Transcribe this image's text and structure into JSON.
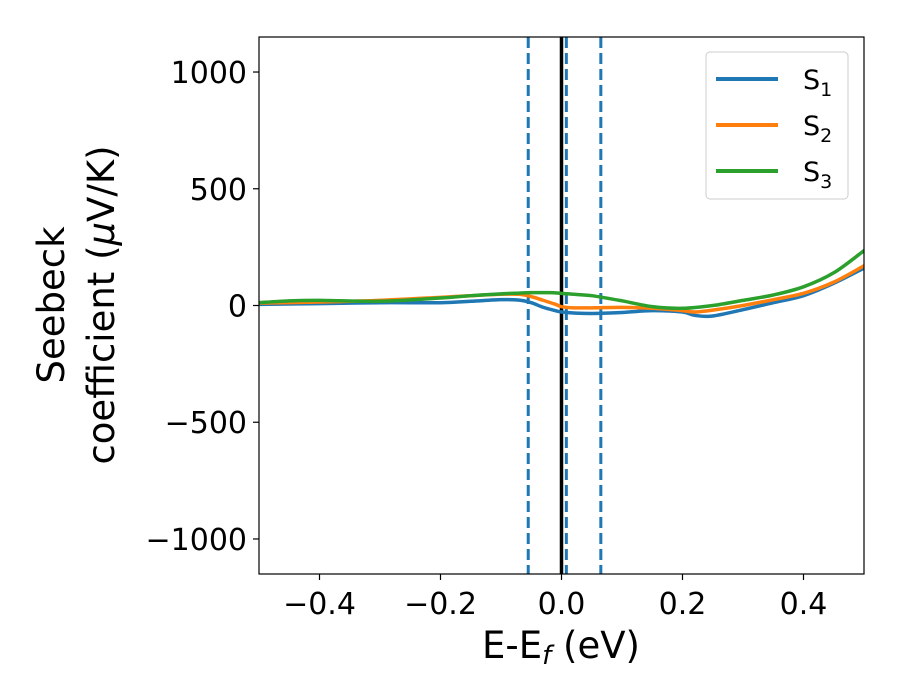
{
  "chart_data": {
    "type": "line",
    "xlabel_main": "E-E",
    "xlabel_sub": "f",
    "xlabel_unit": " (eV)",
    "ylabel_line1": "Seebeck",
    "ylabel_line2_pre": "coefficient  (",
    "ylabel_line2_mu": "μ",
    "ylabel_line2_post": "V/K)",
    "xlim": [
      -0.5,
      0.5
    ],
    "ylim": [
      -1150,
      1150
    ],
    "x_ticks": [
      -0.4,
      -0.2,
      0.0,
      0.2,
      0.4
    ],
    "x_tick_labels": [
      "−0.4",
      "−0.2",
      "0.0",
      "0.2",
      "0.4"
    ],
    "y_ticks": [
      -1000,
      -500,
      0,
      500,
      1000
    ],
    "y_tick_labels": [
      "−1000",
      "−500",
      "0",
      "500",
      "1000"
    ],
    "grid": false,
    "legend_position": "top-right",
    "vertical_lines": [
      {
        "x": 0.0,
        "color": "#000000",
        "style": "solid"
      },
      {
        "x": -0.055,
        "color": "#1f77b4",
        "style": "dashed"
      },
      {
        "x": 0.008,
        "color": "#1f77b4",
        "style": "dashed"
      },
      {
        "x": 0.065,
        "color": "#1f77b4",
        "style": "dashed"
      }
    ],
    "series": [
      {
        "name": "S",
        "sub": "1",
        "color": "#1f77b4",
        "x": [
          -0.5,
          -0.4,
          -0.3,
          -0.2,
          -0.15,
          -0.1,
          -0.07,
          -0.05,
          -0.03,
          -0.01,
          0.0,
          0.02,
          0.05,
          0.1,
          0.15,
          0.2,
          0.22,
          0.25,
          0.3,
          0.35,
          0.4,
          0.45,
          0.5
        ],
        "y": [
          5,
          8,
          12,
          12,
          18,
          25,
          23,
          12,
          -8,
          -22,
          -28,
          -32,
          -34,
          -30,
          -22,
          -28,
          -42,
          -45,
          -18,
          12,
          42,
          95,
          160
        ]
      },
      {
        "name": "S",
        "sub": "2",
        "color": "#ff7f0e",
        "x": [
          -0.5,
          -0.4,
          -0.3,
          -0.2,
          -0.15,
          -0.1,
          -0.07,
          -0.05,
          -0.03,
          -0.01,
          0.0,
          0.02,
          0.05,
          0.1,
          0.15,
          0.2,
          0.22,
          0.25,
          0.3,
          0.35,
          0.4,
          0.45,
          0.5
        ],
        "y": [
          10,
          15,
          22,
          35,
          42,
          48,
          48,
          38,
          22,
          5,
          -5,
          -10,
          -10,
          -8,
          -12,
          -22,
          -28,
          -20,
          0,
          25,
          52,
          100,
          170
        ]
      },
      {
        "name": "S",
        "sub": "3",
        "color": "#2ca02c",
        "x": [
          -0.5,
          -0.45,
          -0.4,
          -0.3,
          -0.2,
          -0.15,
          -0.1,
          -0.07,
          -0.05,
          -0.02,
          0.0,
          0.02,
          0.05,
          0.1,
          0.15,
          0.2,
          0.25,
          0.3,
          0.35,
          0.4,
          0.45,
          0.5
        ],
        "y": [
          12,
          20,
          22,
          18,
          32,
          42,
          50,
          53,
          55,
          55,
          52,
          48,
          42,
          20,
          -5,
          -12,
          0,
          22,
          45,
          80,
          140,
          235
        ]
      }
    ]
  }
}
